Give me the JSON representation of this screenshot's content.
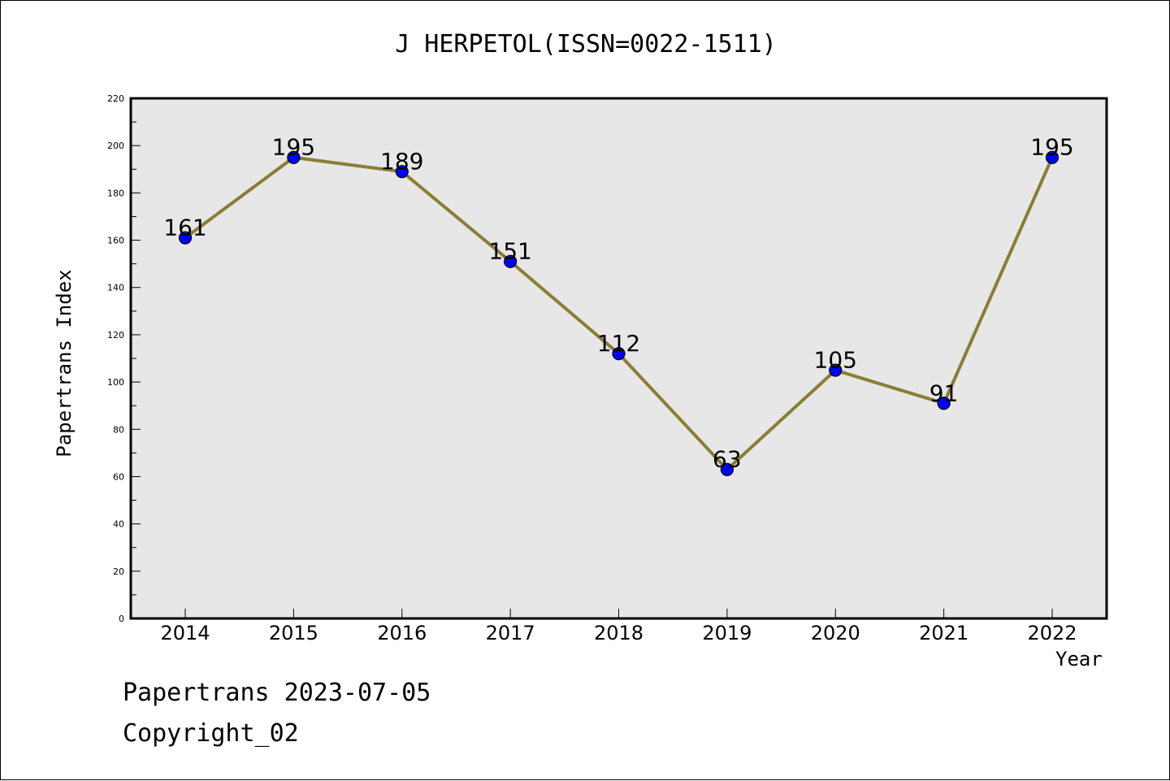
{
  "chart_data": {
    "type": "line",
    "title": "J HERPETOL(ISSN=0022-1511)",
    "xlabel": "Year",
    "ylabel": "Papertrans Index",
    "categories": [
      "2014",
      "2015",
      "2016",
      "2017",
      "2018",
      "2019",
      "2020",
      "2021",
      "2022"
    ],
    "series": [
      {
        "values": [
          161,
          195,
          189,
          151,
          112,
          63,
          105,
          91,
          195
        ]
      }
    ],
    "ylim": [
      0,
      220
    ],
    "yticks": [
      0,
      20,
      40,
      60,
      80,
      100,
      120,
      140,
      160,
      180,
      200,
      220
    ],
    "data_labels": true,
    "grid": false,
    "legend": "none",
    "colors": {
      "line": "#8b7d35",
      "marker_fill": "#0000ff",
      "plot_background": "#e7e7e7"
    }
  },
  "footer": {
    "stamp": "Papertrans 2023-07-05",
    "copyright": "Copyright_02"
  }
}
